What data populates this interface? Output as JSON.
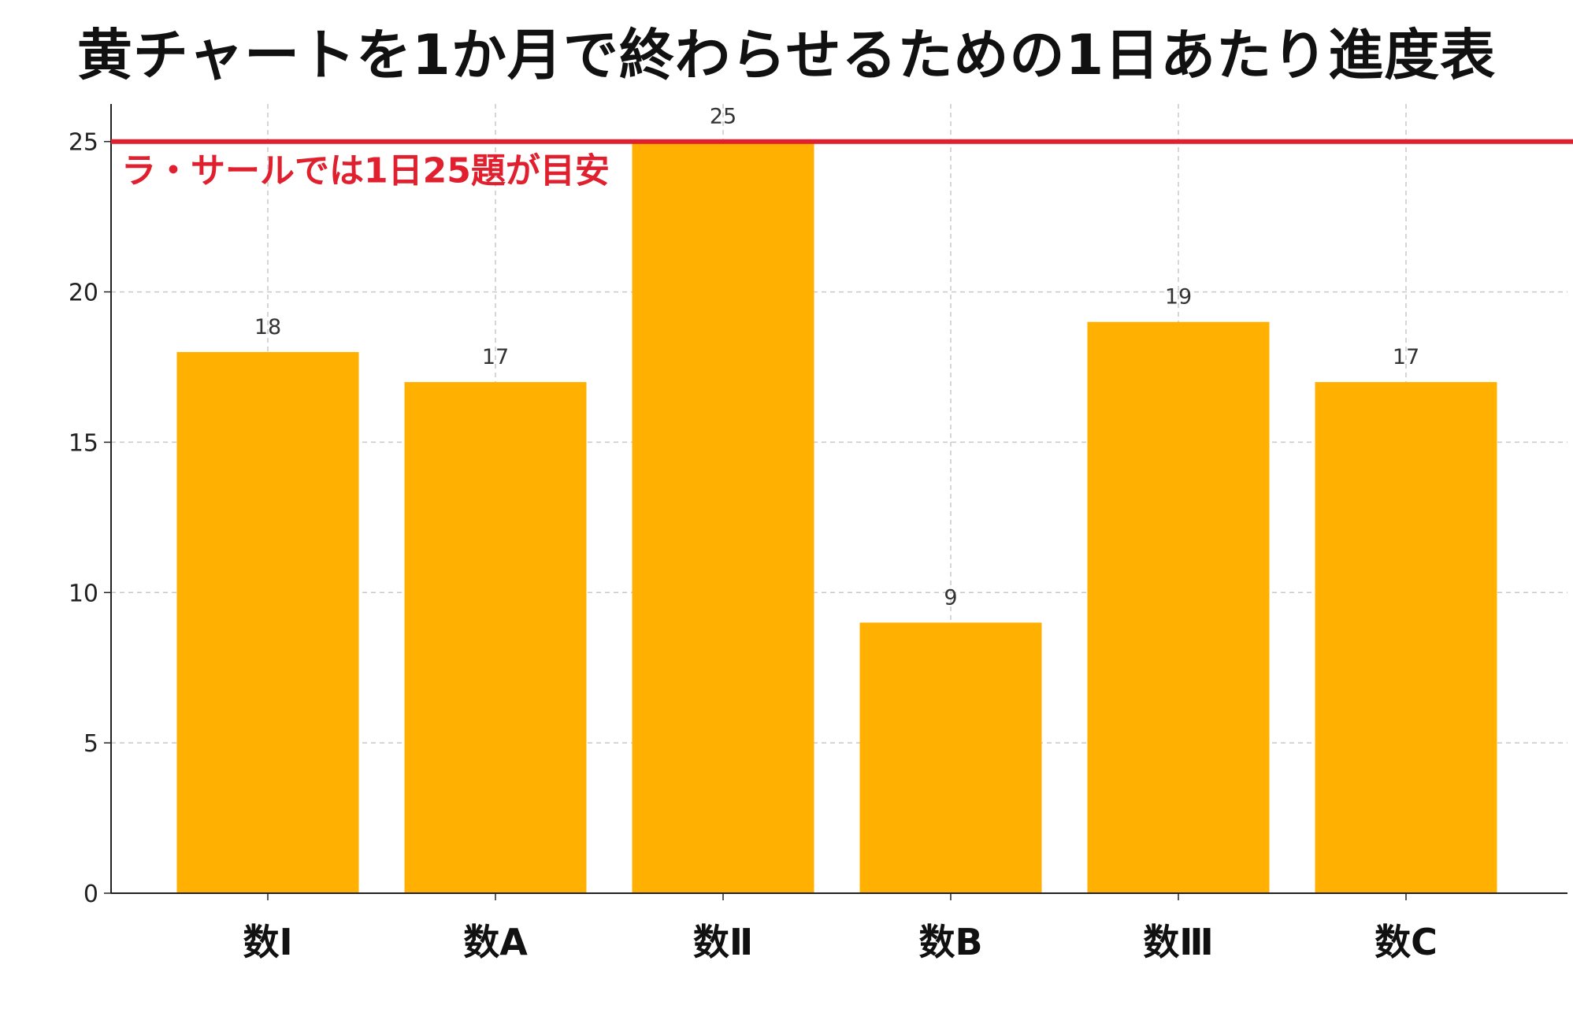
{
  "chart_data": {
    "type": "bar",
    "title": "黄チャートを1か月で終わらせるための1日あたり進度表",
    "categories": [
      "数Ⅰ",
      "数A",
      "数Ⅱ",
      "数B",
      "数Ⅲ",
      "数C"
    ],
    "values": [
      18,
      17,
      25,
      9,
      19,
      17
    ],
    "xlabel": "",
    "ylabel": "",
    "ylim": [
      0,
      26.25
    ],
    "yticks": [
      0,
      5,
      10,
      15,
      20,
      25
    ],
    "grid": true,
    "data_labels": true,
    "bar_color": "#FFB000",
    "reference_line": {
      "value": 25,
      "label": "ラ・サールでは1日25題が目安",
      "color": "#E0202E"
    }
  }
}
